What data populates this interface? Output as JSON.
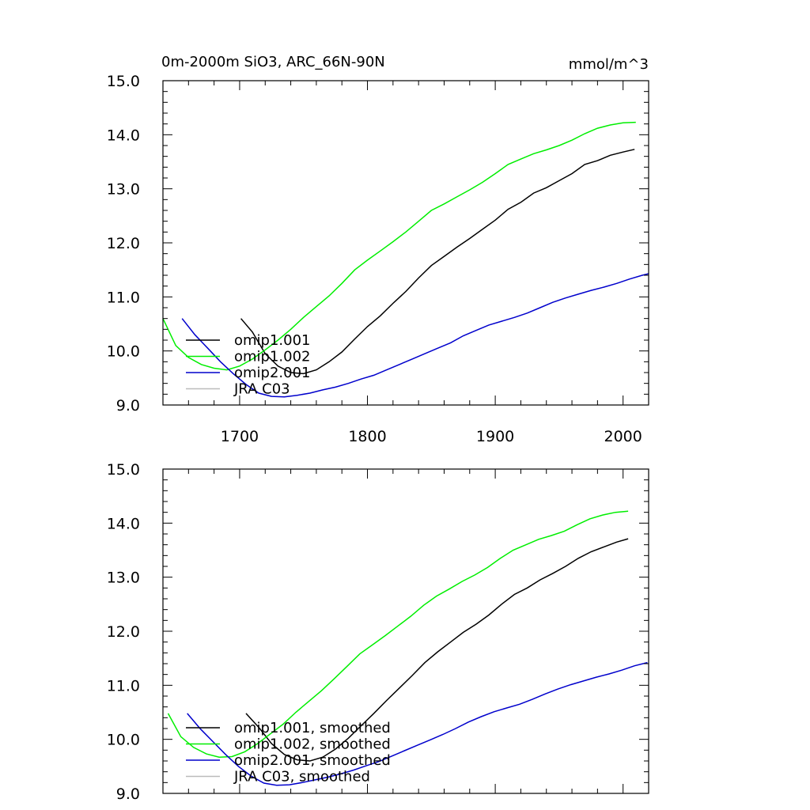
{
  "chart_data": [
    {
      "type": "line",
      "title": "0m-2000m SiO3, ARC_66N-90N",
      "units": "mmol/m^3",
      "xlim": [
        1640,
        2020
      ],
      "ylim": [
        9.0,
        15.0
      ],
      "xticks": [
        1700,
        1800,
        1900,
        2000
      ],
      "xtick_labels": [
        "1700",
        "1800",
        "1900",
        "2000"
      ],
      "yticks": [
        9.0,
        10.0,
        11.0,
        12.0,
        13.0,
        14.0,
        15.0
      ],
      "ytick_labels": [
        "9.0",
        "10.0",
        "11.0",
        "12.0",
        "13.0",
        "14.0",
        "15.0"
      ],
      "grid": false,
      "legend_position": "bottom-left",
      "series": [
        {
          "name": "omip1.001",
          "color": "#000000",
          "points": [
            [
              1701,
              10.6
            ],
            [
              1710,
              10.35
            ],
            [
              1720,
              9.95
            ],
            [
              1730,
              9.72
            ],
            [
              1740,
              9.6
            ],
            [
              1750,
              9.58
            ],
            [
              1760,
              9.65
            ],
            [
              1770,
              9.8
            ],
            [
              1780,
              9.98
            ],
            [
              1790,
              10.22
            ],
            [
              1800,
              10.45
            ],
            [
              1810,
              10.65
            ],
            [
              1820,
              10.88
            ],
            [
              1830,
              11.1
            ],
            [
              1840,
              11.35
            ],
            [
              1850,
              11.58
            ],
            [
              1860,
              11.75
            ],
            [
              1870,
              11.92
            ],
            [
              1880,
              12.08
            ],
            [
              1890,
              12.25
            ],
            [
              1900,
              12.42
            ],
            [
              1910,
              12.62
            ],
            [
              1920,
              12.75
            ],
            [
              1930,
              12.92
            ],
            [
              1940,
              13.02
            ],
            [
              1950,
              13.15
            ],
            [
              1960,
              13.28
            ],
            [
              1970,
              13.45
            ],
            [
              1980,
              13.52
            ],
            [
              1990,
              13.62
            ],
            [
              2000,
              13.68
            ],
            [
              2009,
              13.73
            ]
          ]
        },
        {
          "name": "omip1.002",
          "color": "#00ee00",
          "points": [
            [
              1640,
              10.6
            ],
            [
              1650,
              10.1
            ],
            [
              1660,
              9.88
            ],
            [
              1670,
              9.75
            ],
            [
              1680,
              9.68
            ],
            [
              1690,
              9.65
            ],
            [
              1700,
              9.72
            ],
            [
              1710,
              9.85
            ],
            [
              1720,
              10.02
            ],
            [
              1730,
              10.2
            ],
            [
              1740,
              10.4
            ],
            [
              1750,
              10.62
            ],
            [
              1760,
              10.82
            ],
            [
              1770,
              11.02
            ],
            [
              1780,
              11.25
            ],
            [
              1790,
              11.5
            ],
            [
              1800,
              11.68
            ],
            [
              1810,
              11.85
            ],
            [
              1820,
              12.02
            ],
            [
              1830,
              12.2
            ],
            [
              1840,
              12.4
            ],
            [
              1850,
              12.6
            ],
            [
              1860,
              12.72
            ],
            [
              1870,
              12.85
            ],
            [
              1880,
              12.98
            ],
            [
              1890,
              13.12
            ],
            [
              1900,
              13.28
            ],
            [
              1910,
              13.45
            ],
            [
              1920,
              13.55
            ],
            [
              1930,
              13.65
            ],
            [
              1940,
              13.72
            ],
            [
              1950,
              13.8
            ],
            [
              1960,
              13.9
            ],
            [
              1970,
              14.02
            ],
            [
              1980,
              14.12
            ],
            [
              1990,
              14.18
            ],
            [
              2000,
              14.22
            ],
            [
              2010,
              14.23
            ]
          ]
        },
        {
          "name": "omip2.001",
          "color": "#0000cc",
          "points": [
            [
              1655,
              10.6
            ],
            [
              1665,
              10.3
            ],
            [
              1675,
              10.05
            ],
            [
              1685,
              9.8
            ],
            [
              1695,
              9.58
            ],
            [
              1705,
              9.38
            ],
            [
              1715,
              9.22
            ],
            [
              1725,
              9.16
            ],
            [
              1735,
              9.15
            ],
            [
              1745,
              9.18
            ],
            [
              1755,
              9.22
            ],
            [
              1765,
              9.28
            ],
            [
              1775,
              9.33
            ],
            [
              1785,
              9.4
            ],
            [
              1795,
              9.48
            ],
            [
              1805,
              9.55
            ],
            [
              1815,
              9.65
            ],
            [
              1825,
              9.75
            ],
            [
              1835,
              9.85
            ],
            [
              1845,
              9.95
            ],
            [
              1855,
              10.05
            ],
            [
              1865,
              10.15
            ],
            [
              1875,
              10.28
            ],
            [
              1885,
              10.38
            ],
            [
              1895,
              10.48
            ],
            [
              1905,
              10.55
            ],
            [
              1915,
              10.62
            ],
            [
              1925,
              10.7
            ],
            [
              1935,
              10.8
            ],
            [
              1945,
              10.9
            ],
            [
              1955,
              10.98
            ],
            [
              1965,
              11.05
            ],
            [
              1975,
              11.12
            ],
            [
              1985,
              11.18
            ],
            [
              1995,
              11.25
            ],
            [
              2005,
              11.33
            ],
            [
              2015,
              11.4
            ],
            [
              2020,
              11.43
            ]
          ]
        },
        {
          "name": "JRA C03",
          "color": "#bbbbbb",
          "points": []
        }
      ]
    },
    {
      "type": "line",
      "title": "",
      "units": "",
      "xlim": [
        1640,
        2020
      ],
      "ylim": [
        9.0,
        15.0
      ],
      "xticks": [
        1700,
        1800,
        1900,
        2000
      ],
      "xtick_labels": [],
      "yticks": [
        9.0,
        10.0,
        11.0,
        12.0,
        13.0,
        14.0,
        15.0
      ],
      "ytick_labels": [
        "9.0",
        "10.0",
        "11.0",
        "12.0",
        "13.0",
        "14.0",
        "15.0"
      ],
      "grid": false,
      "legend_position": "bottom-left",
      "series": [
        {
          "name": "omip1.001, smoothed",
          "color": "#000000",
          "points": [
            [
              1705,
              10.48
            ],
            [
              1715,
              10.22
            ],
            [
              1725,
              9.92
            ],
            [
              1735,
              9.72
            ],
            [
              1745,
              9.62
            ],
            [
              1755,
              9.6
            ],
            [
              1765,
              9.67
            ],
            [
              1775,
              9.82
            ],
            [
              1785,
              10.02
            ],
            [
              1795,
              10.25
            ],
            [
              1805,
              10.48
            ],
            [
              1815,
              10.72
            ],
            [
              1825,
              10.95
            ],
            [
              1835,
              11.18
            ],
            [
              1845,
              11.42
            ],
            [
              1855,
              11.62
            ],
            [
              1865,
              11.8
            ],
            [
              1875,
              11.98
            ],
            [
              1885,
              12.13
            ],
            [
              1895,
              12.3
            ],
            [
              1905,
              12.5
            ],
            [
              1915,
              12.68
            ],
            [
              1925,
              12.8
            ],
            [
              1935,
              12.95
            ],
            [
              1945,
              13.07
            ],
            [
              1955,
              13.2
            ],
            [
              1965,
              13.35
            ],
            [
              1975,
              13.47
            ],
            [
              1985,
              13.56
            ],
            [
              1995,
              13.65
            ],
            [
              2004,
              13.71
            ]
          ]
        },
        {
          "name": "omip1.002, smoothed",
          "color": "#00ee00",
          "points": [
            [
              1644,
              10.48
            ],
            [
              1654,
              10.05
            ],
            [
              1664,
              9.85
            ],
            [
              1674,
              9.73
            ],
            [
              1684,
              9.67
            ],
            [
              1694,
              9.68
            ],
            [
              1704,
              9.77
            ],
            [
              1714,
              9.92
            ],
            [
              1724,
              10.1
            ],
            [
              1734,
              10.28
            ],
            [
              1744,
              10.5
            ],
            [
              1754,
              10.7
            ],
            [
              1764,
              10.9
            ],
            [
              1774,
              11.12
            ],
            [
              1784,
              11.35
            ],
            [
              1794,
              11.58
            ],
            [
              1804,
              11.75
            ],
            [
              1814,
              11.92
            ],
            [
              1824,
              12.1
            ],
            [
              1834,
              12.28
            ],
            [
              1844,
              12.48
            ],
            [
              1854,
              12.65
            ],
            [
              1864,
              12.78
            ],
            [
              1874,
              12.92
            ],
            [
              1884,
              13.04
            ],
            [
              1894,
              13.18
            ],
            [
              1904,
              13.35
            ],
            [
              1914,
              13.5
            ],
            [
              1924,
              13.6
            ],
            [
              1934,
              13.7
            ],
            [
              1944,
              13.77
            ],
            [
              1954,
              13.85
            ],
            [
              1964,
              13.97
            ],
            [
              1974,
              14.08
            ],
            [
              1984,
              14.15
            ],
            [
              1994,
              14.2
            ],
            [
              2004,
              14.22
            ]
          ]
        },
        {
          "name": "omip2.001, smoothed",
          "color": "#0000cc",
          "points": [
            [
              1659,
              10.48
            ],
            [
              1669,
              10.2
            ],
            [
              1679,
              9.96
            ],
            [
              1689,
              9.72
            ],
            [
              1699,
              9.5
            ],
            [
              1709,
              9.32
            ],
            [
              1719,
              9.19
            ],
            [
              1729,
              9.15
            ],
            [
              1739,
              9.16
            ],
            [
              1749,
              9.2
            ],
            [
              1759,
              9.25
            ],
            [
              1769,
              9.3
            ],
            [
              1779,
              9.36
            ],
            [
              1789,
              9.43
            ],
            [
              1799,
              9.51
            ],
            [
              1809,
              9.59
            ],
            [
              1819,
              9.69
            ],
            [
              1829,
              9.79
            ],
            [
              1839,
              9.89
            ],
            [
              1849,
              9.99
            ],
            [
              1859,
              10.09
            ],
            [
              1869,
              10.2
            ],
            [
              1879,
              10.32
            ],
            [
              1889,
              10.42
            ],
            [
              1899,
              10.51
            ],
            [
              1909,
              10.58
            ],
            [
              1919,
              10.65
            ],
            [
              1929,
              10.74
            ],
            [
              1939,
              10.84
            ],
            [
              1949,
              10.93
            ],
            [
              1959,
              11.01
            ],
            [
              1969,
              11.08
            ],
            [
              1979,
              11.15
            ],
            [
              1989,
              11.21
            ],
            [
              1999,
              11.28
            ],
            [
              2009,
              11.36
            ],
            [
              2019,
              11.42
            ]
          ]
        },
        {
          "name": "JRA C03, smoothed",
          "color": "#bbbbbb",
          "points": []
        }
      ]
    }
  ]
}
